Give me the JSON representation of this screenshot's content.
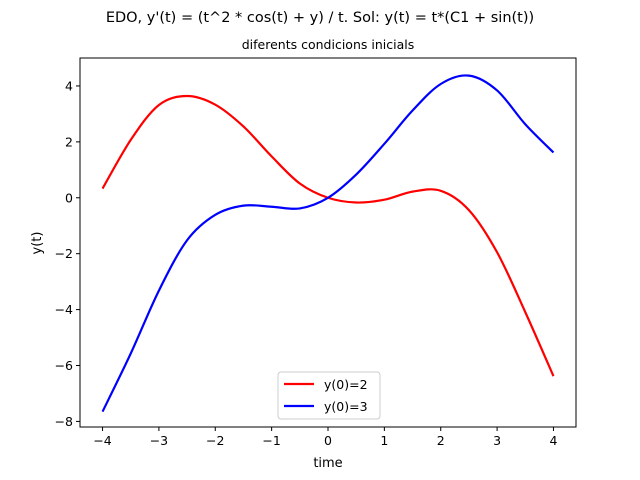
{
  "chart_data": {
    "type": "line",
    "suptitle": "EDO, y'(t) = (t^2 * cos(t) + y) / t. Sol: y(t) = t*(C1 + sin(t))",
    "title": "diferents condicions inicials",
    "xlabel": "time",
    "ylabel": "y(t)",
    "xlim": [
      -4.4,
      4.4
    ],
    "ylim": [
      -8.2,
      5.0
    ],
    "xticks": [
      -4,
      -3,
      -2,
      -1,
      0,
      1,
      2,
      3,
      4
    ],
    "xtick_labels": [
      "−4",
      "−3",
      "−2",
      "−1",
      "0",
      "1",
      "2",
      "3",
      "4"
    ],
    "yticks": [
      -8,
      -6,
      -4,
      -2,
      0,
      2,
      4
    ],
    "ytick_labels": [
      "−8",
      "−6",
      "−4",
      "−2",
      "0",
      "2",
      "4"
    ],
    "grid": false,
    "legend_position": "lower-center",
    "x": [
      -4.0,
      -3.5,
      -3.0,
      -2.5,
      -2.0,
      -1.5,
      -1.0,
      -0.5,
      0.0,
      0.5,
      1.0,
      1.5,
      2.0,
      2.5,
      3.0,
      3.5,
      4.0
    ],
    "series": [
      {
        "name": "y(0)=2",
        "color": "#ff0000",
        "values": [
          0.33,
          2.07,
          3.32,
          3.64,
          3.33,
          2.55,
          1.48,
          0.51,
          0.0,
          -0.17,
          -0.07,
          0.22,
          0.25,
          -0.44,
          -1.95,
          -4.09,
          -6.38
        ]
      },
      {
        "name": "y(0)=3",
        "color": "#0000ff",
        "values": [
          -7.65,
          -5.57,
          -3.32,
          -1.52,
          -0.61,
          -0.28,
          -0.32,
          -0.38,
          0.0,
          0.83,
          1.93,
          3.12,
          4.07,
          4.37,
          3.84,
          2.63,
          1.62
        ]
      }
    ]
  }
}
